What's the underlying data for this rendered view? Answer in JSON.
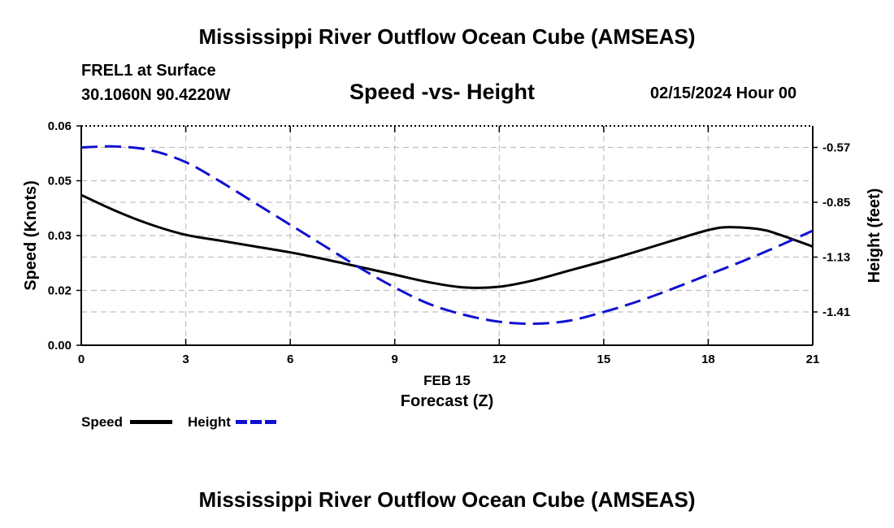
{
  "header": {
    "title": "Mississippi River Outflow Ocean Cube (AMSEAS)",
    "station": "FREL1 at Surface",
    "coords": "30.1060N  90.4220W",
    "subtitle": "Speed -vs- Height",
    "date": "02/15/2024 Hour 00"
  },
  "footer": {
    "title": "Mississippi River Outflow Ocean Cube (AMSEAS)"
  },
  "colors": {
    "speed": "#000000",
    "height": "#1010d0",
    "grid": "#c0c0c0"
  },
  "chart_data": {
    "type": "line",
    "title": "Speed -vs- Height",
    "xlabel": "Forecast (Z)",
    "xsublabel": "FEB 15",
    "ylabel": "Speed (Knots)",
    "y2label": "Height (feet)",
    "xlim": [
      0,
      21
    ],
    "ylim": [
      0,
      0.06
    ],
    "y2lim": [
      -1.58,
      -0.46
    ],
    "x_ticks": [
      0,
      3,
      6,
      9,
      12,
      15,
      18,
      21
    ],
    "x_tick_labels": [
      "0",
      "3",
      "6",
      "9",
      "12",
      "15",
      "18",
      "21"
    ],
    "y_ticks": [
      0,
      0.015,
      0.03,
      0.045,
      0.06
    ],
    "y_tick_labels": [
      "0.00",
      "0.02",
      "0.03",
      "0.05",
      "0.06"
    ],
    "y2_ticks": [
      -0.57,
      -0.85,
      -1.13,
      -1.41
    ],
    "y2_tick_labels": [
      "-0.57",
      "-0.85",
      "-1.13",
      "-1.41"
    ],
    "grid": true,
    "legend": "bottom-left",
    "series": [
      {
        "name": "Speed",
        "axis": "left",
        "style": "solid",
        "x": [
          0,
          1,
          2,
          3,
          4,
          5,
          6,
          7,
          8,
          9,
          10,
          11,
          12,
          13,
          14,
          15,
          16,
          17,
          18,
          18.6,
          19.5,
          20,
          21
        ],
        "values": [
          0.0411,
          0.0367,
          0.033,
          0.0302,
          0.0286,
          0.027,
          0.0254,
          0.0235,
          0.0214,
          0.0193,
          0.0172,
          0.0158,
          0.016,
          0.0178,
          0.0204,
          0.023,
          0.0258,
          0.0287,
          0.0315,
          0.0323,
          0.0317,
          0.0304,
          0.027
        ]
      },
      {
        "name": "Height",
        "axis": "right",
        "style": "dashed",
        "x": [
          0,
          1,
          2,
          3,
          4,
          5,
          6,
          7,
          8,
          9,
          10,
          11,
          12,
          13,
          14,
          15,
          16,
          17,
          18,
          19,
          20,
          21
        ],
        "values": [
          -0.57,
          -0.565,
          -0.585,
          -0.645,
          -0.745,
          -0.855,
          -0.965,
          -1.075,
          -1.185,
          -1.285,
          -1.37,
          -1.425,
          -1.46,
          -1.47,
          -1.455,
          -1.41,
          -1.355,
          -1.29,
          -1.22,
          -1.15,
          -1.075,
          -0.995
        ]
      }
    ]
  }
}
